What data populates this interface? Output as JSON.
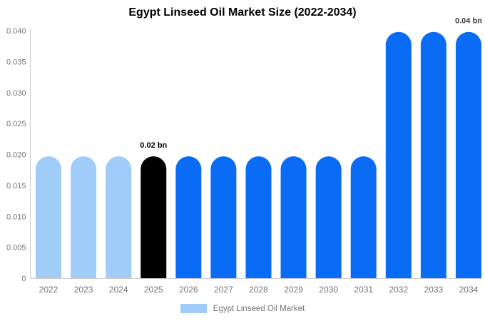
{
  "title": "Egypt Linseed Oil Market Size (2022-2034)",
  "legend": {
    "label": "Egypt Linseed Oil Market",
    "swatch_color": "#9fccf8"
  },
  "colors": {
    "light_blue_bar": "#9fccf8",
    "bright_blue_bar": "#0a6cf5",
    "highlight_bar": "#000000",
    "axis_line": "#cccccc",
    "tick_text": "#757575",
    "title_text": "#000000"
  },
  "chart_data": {
    "type": "bar",
    "title": "Egypt Linseed Oil Market Size (2022-2034)",
    "categories": [
      "2022",
      "2023",
      "2024",
      "2025",
      "2026",
      "2027",
      "2028",
      "2029",
      "2030",
      "2031",
      "2032",
      "2033",
      "2034"
    ],
    "values": [
      0.0197,
      0.0197,
      0.0197,
      0.0197,
      0.0197,
      0.0197,
      0.0197,
      0.0197,
      0.0197,
      0.0197,
      0.0398,
      0.0398,
      0.0398
    ],
    "bar_colors": [
      "#9fccf8",
      "#9fccf8",
      "#9fccf8",
      "#000000",
      "#0a6cf5",
      "#0a6cf5",
      "#0a6cf5",
      "#0a6cf5",
      "#0a6cf5",
      "#0a6cf5",
      "#0a6cf5",
      "#0a6cf5",
      "#0a6cf5"
    ],
    "unit": "bn",
    "xlabel": "",
    "ylabel": "",
    "ylim": [
      0,
      0.04
    ],
    "yticks": [
      "0",
      "0.005",
      "0.010",
      "0.015",
      "0.020",
      "0.025",
      "0.030",
      "0.035",
      "0.040"
    ],
    "grid": false,
    "legend_position": "bottom",
    "series_name": "Egypt Linseed Oil Market",
    "annotations": [
      {
        "year": "2025",
        "text": "0.02 bn",
        "color": "#000000"
      },
      {
        "year": "2034",
        "text": "0.04 bn",
        "color": "#3d3d3d"
      }
    ]
  }
}
